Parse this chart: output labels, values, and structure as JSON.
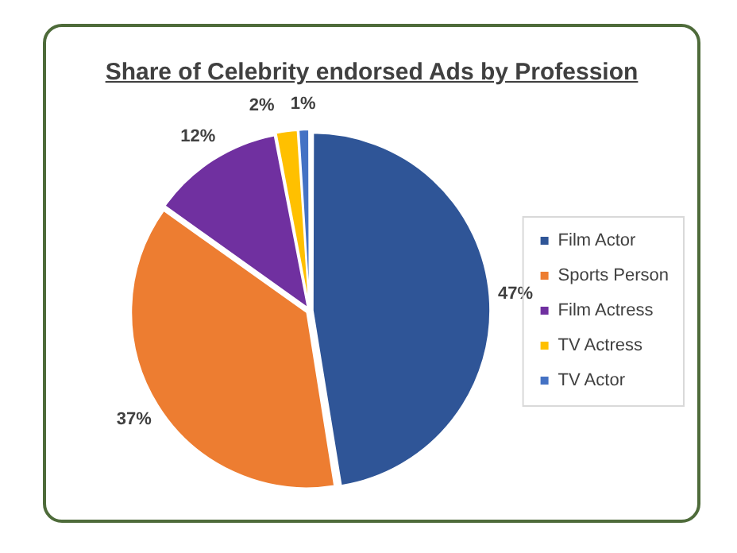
{
  "chart_data": {
    "type": "pie",
    "title": "Share of Celebrity endorsed Ads by Profession",
    "categories": [
      "Film Actor",
      "Sports Person",
      "Film Actress",
      "TV Actress",
      "TV Actor"
    ],
    "values": [
      47,
      37,
      12,
      2,
      1
    ],
    "colors": [
      "#2f5597",
      "#ed7d31",
      "#7030a0",
      "#ffc000",
      "#4472c4"
    ],
    "value_labels": [
      "47%",
      "37%",
      "12%",
      "2%",
      "1%"
    ],
    "legend": "right"
  }
}
